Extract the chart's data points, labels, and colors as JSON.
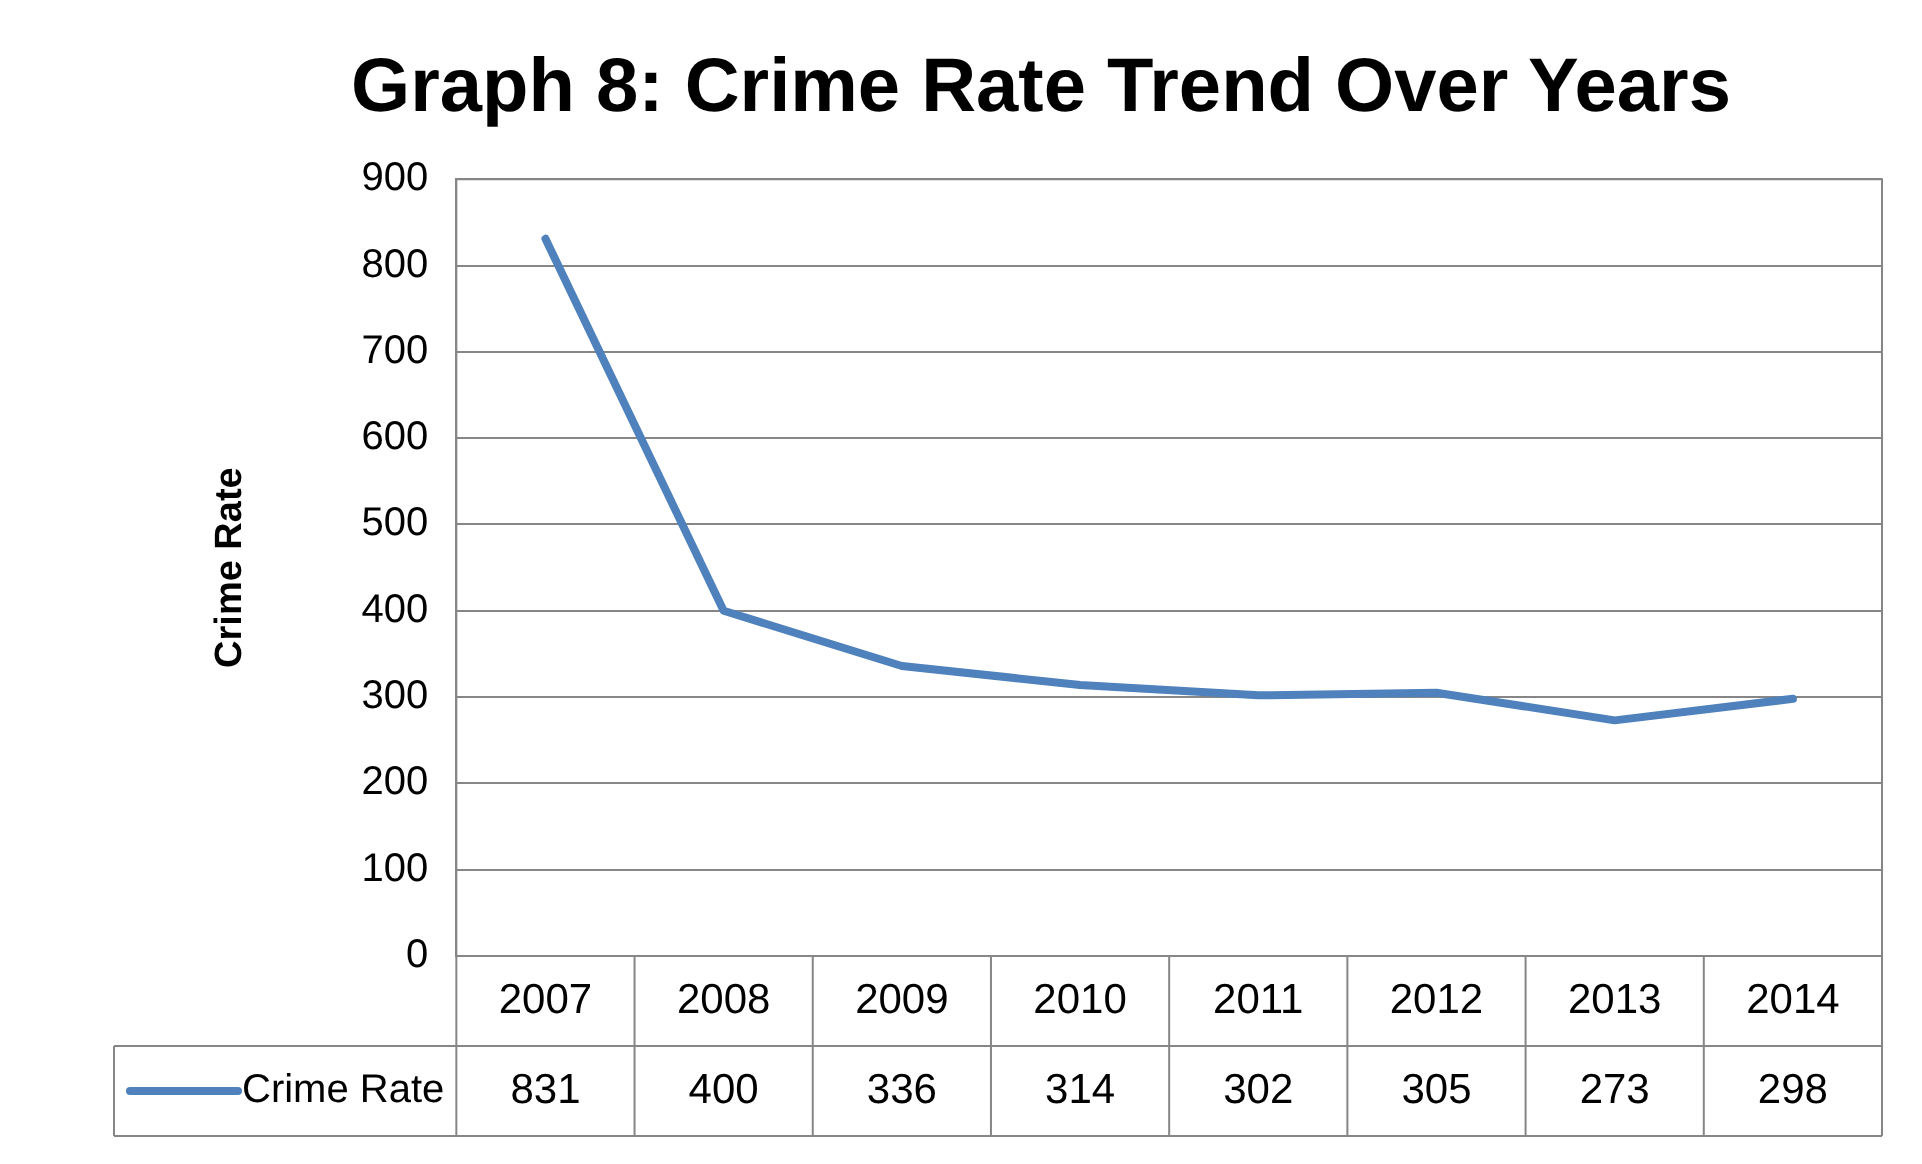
{
  "chart_data": {
    "type": "line",
    "title": "Graph 8: Crime Rate Trend Over Years",
    "ylabel": "Crime Rate",
    "categories": [
      "2007",
      "2008",
      "2009",
      "2010",
      "2011",
      "2012",
      "2013",
      "2014"
    ],
    "series": [
      {
        "name": "Crime Rate",
        "color": "#4f81bd",
        "values": [
          831,
          400,
          336,
          314,
          302,
          305,
          273,
          298
        ]
      }
    ],
    "ylim": [
      0,
      900
    ],
    "yticks": [
      0,
      100,
      200,
      300,
      400,
      500,
      600,
      700,
      800,
      900
    ],
    "grid": "y",
    "legend": "bottom",
    "marker": "none",
    "data_labels": true
  }
}
